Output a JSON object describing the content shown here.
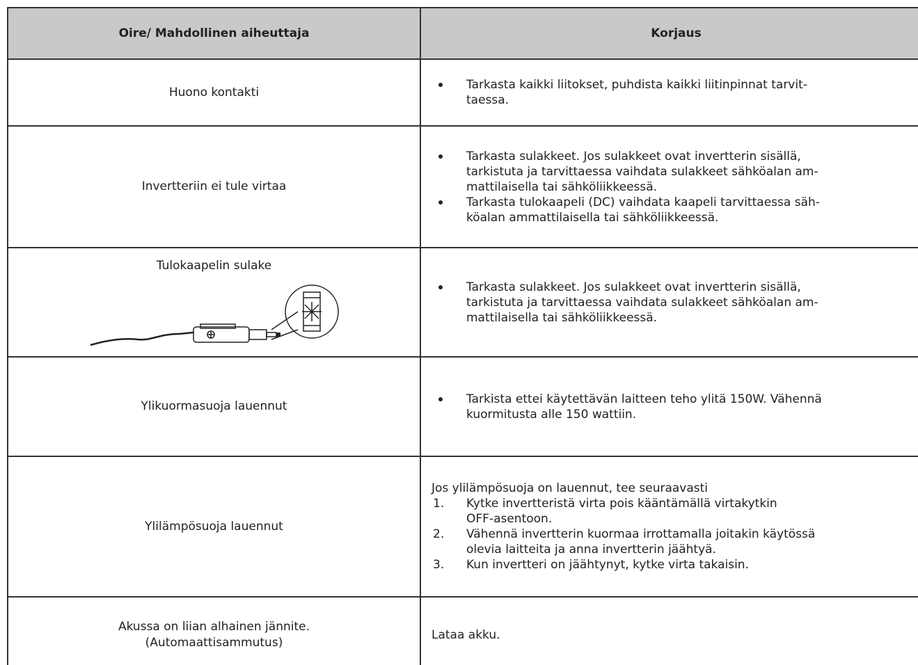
{
  "table": {
    "header": [
      "Oire/ Mahdollinen aiheuttaja",
      "Korjaus"
    ],
    "rows": [
      {
        "cause": [
          "Huono kontakti"
        ],
        "fix_bullets": [
          [
            "Tarkasta kaikki liitokset, puhdista kaikki liitinpinnat tarvit-",
            "taessa."
          ]
        ]
      },
      {
        "cause": [
          "Invertteriin ei tule virtaa"
        ],
        "fix_bullets": [
          [
            "Tarkasta sulakkeet. Jos sulakkeet ovat invertterin sisällä,",
            "tarkistuta ja tarvittaessa vaihdata sulakkeet sähköalan am-",
            "mattilaisella tai sähköliikkeessä."
          ],
          [
            "Tarkasta tulokaapeli (DC) vaihdata kaapeli tarvittaessa säh-",
            "köalan  ammattilaisella tai sähköliikkeessä."
          ]
        ]
      },
      {
        "cause": [
          "Tulokaapelin sulake"
        ],
        "fix_bullets": [
          [
            "Tarkasta sulakkeet. Jos sulakkeet ovat invertterin sisällä,",
            "tarkistuta ja tarvittaessa vaihdata sulakkeet sähköalan am-",
            "mattilaisella tai sähköliikkeessä."
          ]
        ]
      },
      {
        "cause": [
          "Ylikuormasuoja lauennut"
        ],
        "fix_bullets": [
          [
            "Tarkista ettei käytettävän laitteen teho ylitä 150W. Vähennä",
            "kuormitusta alle 150 wattiin."
          ]
        ]
      },
      {
        "cause": [
          "Ylilämpösuoja lauennut"
        ],
        "fix_intro": "Jos ylilämpösuoja on lauennut, tee seuraavasti",
        "fix_steps": [
          {
            "number": "1.",
            "lines": [
              "Kytke invertteristä virta pois kääntämällä virtakytkin",
              "OFF-asentoon."
            ]
          },
          {
            "number": "2.",
            "lines": [
              "Vähennä invertterin kuormaa irrottamalla joitakin käytössä",
              "olevia laitteita ja anna invertterin jäähtyä."
            ]
          },
          {
            "number": "3.",
            "lines": [
              "Kun invertteri on jäähtynyt, kytke virta takaisin."
            ]
          }
        ]
      },
      {
        "cause": [
          "Akussa on liian alhainen jännite.",
          "(Automaattisammutus)"
        ],
        "fix_text": "Lataa akku."
      }
    ]
  }
}
